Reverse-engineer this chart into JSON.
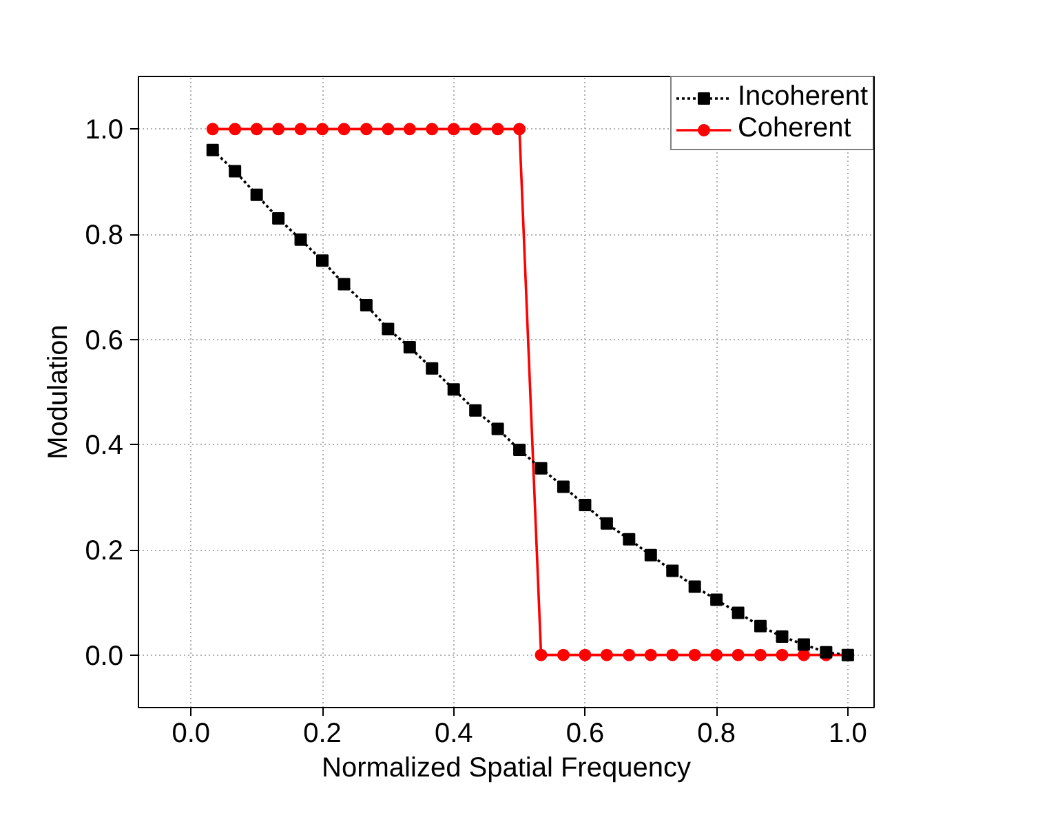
{
  "chart_data": {
    "type": "line",
    "xlabel": "Normalized Spatial Frequency",
    "ylabel": "Modulation",
    "x": [
      0.033,
      0.067,
      0.1,
      0.133,
      0.167,
      0.2,
      0.233,
      0.267,
      0.3,
      0.333,
      0.367,
      0.4,
      0.433,
      0.467,
      0.5,
      0.533,
      0.567,
      0.6,
      0.633,
      0.667,
      0.7,
      0.733,
      0.767,
      0.8,
      0.833,
      0.867,
      0.9,
      0.933,
      0.967,
      1.0
    ],
    "series": [
      {
        "name": "Incoherent",
        "color": "#000000",
        "marker": "square",
        "line_style": "dotted",
        "values": [
          0.96,
          0.92,
          0.875,
          0.83,
          0.79,
          0.75,
          0.705,
          0.665,
          0.62,
          0.585,
          0.545,
          0.505,
          0.465,
          0.43,
          0.39,
          0.355,
          0.32,
          0.285,
          0.25,
          0.22,
          0.19,
          0.16,
          0.13,
          0.105,
          0.08,
          0.055,
          0.035,
          0.02,
          0.005,
          0.0
        ]
      },
      {
        "name": "Coherent",
        "color": "#ff0000",
        "marker": "circle",
        "line_style": "solid",
        "values": [
          1,
          1,
          1,
          1,
          1,
          1,
          1,
          1,
          1,
          1,
          1,
          1,
          1,
          1,
          1,
          0,
          0,
          0,
          0,
          0,
          0,
          0,
          0,
          0,
          0,
          0,
          0,
          0,
          0,
          0
        ]
      }
    ],
    "xlim": [
      -0.08,
      1.04
    ],
    "ylim": [
      -0.1,
      1.1
    ],
    "xticks": [
      {
        "value": 0,
        "label": "0.0"
      },
      {
        "value": 0.2,
        "label": "0.2"
      },
      {
        "value": 0.4,
        "label": "0.4"
      },
      {
        "value": 0.6,
        "label": "0.6"
      },
      {
        "value": 0.8,
        "label": "0.8"
      },
      {
        "value": 1.0,
        "label": "1.0"
      }
    ],
    "yticks": [
      {
        "value": 0,
        "label": "0.0"
      },
      {
        "value": 0.2,
        "label": "0.2"
      },
      {
        "value": 0.4,
        "label": "0.4"
      },
      {
        "value": 0.6,
        "label": "0.6"
      },
      {
        "value": 0.8,
        "label": "0.8"
      },
      {
        "value": 1.0,
        "label": "1.0"
      }
    ],
    "grid": true,
    "legend": "top right"
  }
}
